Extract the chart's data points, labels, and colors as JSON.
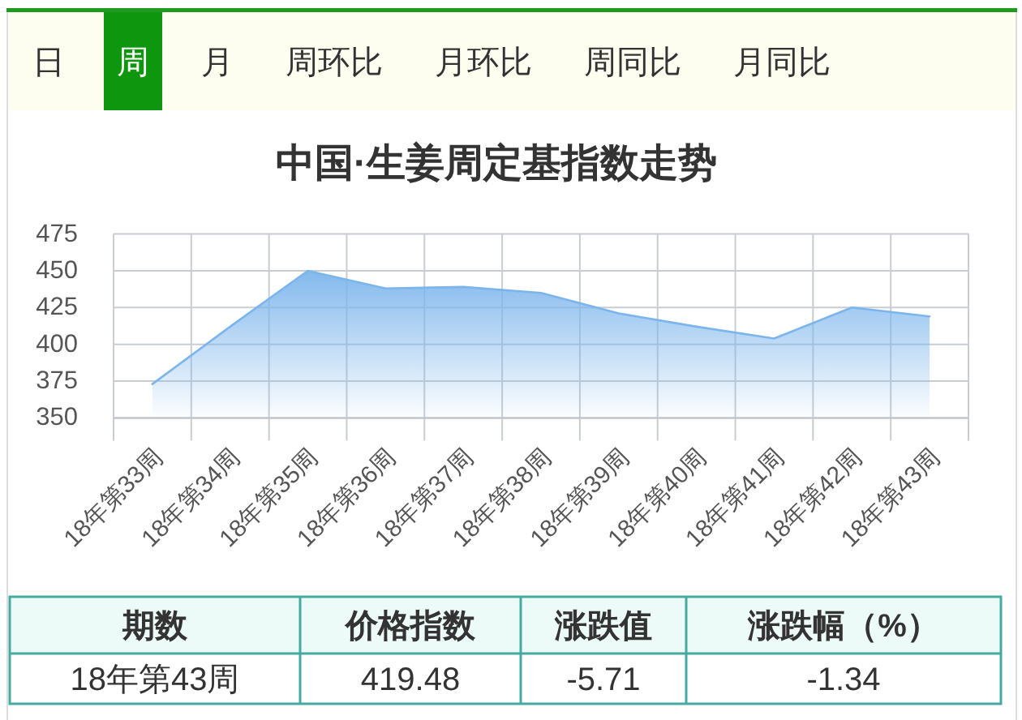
{
  "chart_data": [
    {
      "type": "other",
      "categories": [
        "日",
        "周",
        "月",
        "周环比",
        "月环比",
        "周同比",
        "月同比"
      ],
      "colors": [
        null,
        "#0e970e",
        null,
        null,
        null,
        null,
        null
      ]
    },
    {
      "type": "area",
      "title": "中国·生姜周定基指数走势",
      "categories": [
        "18年第33周",
        "18年第34周",
        "18年第35周",
        "18年第36周",
        "18年第37周",
        "18年第38周",
        "18年第39周",
        "18年第40周",
        "18年第41周",
        "18年第42周",
        "18年第43周"
      ],
      "series": [
        {
          "color": "#7cb5ec",
          "values": [
            373,
            412,
            450,
            438,
            439,
            435,
            421,
            412,
            404,
            425,
            419
          ]
        }
      ],
      "ylim": [
        350,
        475
      ],
      "yticks": [
        350,
        375,
        400,
        425,
        450,
        475
      ],
      "grid": true
    },
    {
      "type": "other",
      "categories": [
        "期数",
        "价格指数",
        "涨跌值",
        "涨跌幅（%）"
      ],
      "annotations": [
        "18年第43周",
        "419.48",
        "-5.71",
        "-1.34"
      ]
    }
  ]
}
